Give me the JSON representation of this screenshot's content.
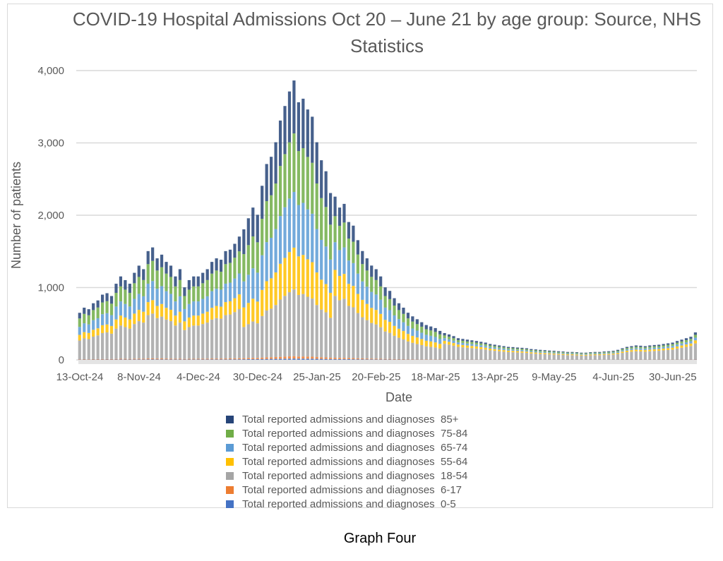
{
  "caption": "Graph Four",
  "chart_data": {
    "type": "bar",
    "stacked": true,
    "title": "COVID-19 Hospital Admissions Oct 20 – June 21 by age group: Source, NHS Statistics",
    "xlabel": "Date",
    "ylabel": "Number of patients",
    "ylim": [
      0,
      4000
    ],
    "yticks": [
      0,
      1000,
      2000,
      3000,
      4000
    ],
    "ytick_labels": [
      "0",
      "1,000",
      "2,000",
      "3,000",
      "4,000"
    ],
    "xtick_labels": [
      "13-Oct-24",
      "8-Nov-24",
      "4-Dec-24",
      "30-Dec-24",
      "25-Jan-25",
      "20-Feb-25",
      "18-Mar-25",
      "13-Apr-25",
      "9-May-25",
      "4-Jun-25",
      "30-Jun-25"
    ],
    "grid": "horizontal",
    "legend": "bottom",
    "x": [
      "13-Oct-24",
      "15-Oct-24",
      "17-Oct-24",
      "19-Oct-24",
      "21-Oct-24",
      "23-Oct-24",
      "25-Oct-24",
      "27-Oct-24",
      "29-Oct-24",
      "31-Oct-24",
      "2-Nov-24",
      "4-Nov-24",
      "6-Nov-24",
      "8-Nov-24",
      "10-Nov-24",
      "12-Nov-24",
      "14-Nov-24",
      "16-Nov-24",
      "18-Nov-24",
      "20-Nov-24",
      "22-Nov-24",
      "24-Nov-24",
      "26-Nov-24",
      "28-Nov-24",
      "30-Nov-24",
      "2-Dec-24",
      "4-Dec-24",
      "6-Dec-24",
      "8-Dec-24",
      "10-Dec-24",
      "12-Dec-24",
      "14-Dec-24",
      "16-Dec-24",
      "18-Dec-24",
      "20-Dec-24",
      "22-Dec-24",
      "24-Dec-24",
      "26-Dec-24",
      "28-Dec-24",
      "30-Dec-24",
      "1-Jan-25",
      "3-Jan-25",
      "5-Jan-25",
      "7-Jan-25",
      "9-Jan-25",
      "11-Jan-25",
      "13-Jan-25",
      "15-Jan-25",
      "17-Jan-25",
      "19-Jan-25",
      "21-Jan-25",
      "23-Jan-25",
      "25-Jan-25",
      "27-Jan-25",
      "29-Jan-25",
      "31-Jan-25",
      "2-Feb-25",
      "4-Feb-25",
      "6-Feb-25",
      "8-Feb-25",
      "10-Feb-25",
      "12-Feb-25",
      "14-Feb-25",
      "16-Feb-25",
      "18-Feb-25",
      "20-Feb-25",
      "22-Feb-25",
      "24-Feb-25",
      "26-Feb-25",
      "28-Feb-25",
      "2-Mar-25",
      "4-Mar-25",
      "6-Mar-25",
      "8-Mar-25",
      "10-Mar-25",
      "12-Mar-25",
      "14-Mar-25",
      "16-Mar-25",
      "18-Mar-25",
      "20-Mar-25",
      "22-Mar-25",
      "24-Mar-25",
      "26-Mar-25",
      "28-Mar-25",
      "30-Mar-25",
      "1-Apr-25",
      "3-Apr-25",
      "5-Apr-25",
      "7-Apr-25",
      "9-Apr-25",
      "11-Apr-25",
      "13-Apr-25",
      "15-Apr-25",
      "17-Apr-25",
      "19-Apr-25",
      "21-Apr-25",
      "23-Apr-25",
      "25-Apr-25",
      "27-Apr-25",
      "29-Apr-25",
      "1-May-25",
      "3-May-25",
      "5-May-25",
      "7-May-25",
      "9-May-25",
      "11-May-25",
      "13-May-25",
      "15-May-25",
      "17-May-25",
      "19-May-25",
      "21-May-25",
      "23-May-25",
      "25-May-25",
      "27-May-25",
      "29-May-25",
      "31-May-25",
      "2-Jun-25",
      "4-Jun-25",
      "6-Jun-25",
      "8-Jun-25",
      "10-Jun-25",
      "12-Jun-25",
      "14-Jun-25",
      "16-Jun-25",
      "18-Jun-25",
      "20-Jun-25",
      "22-Jun-25",
      "24-Jun-25",
      "26-Jun-25",
      "28-Jun-25",
      "30-Jun-25",
      "2-Jul-25",
      "4-Jul-25",
      "6-Jul-25",
      "8-Jul-25",
      "10-Jul-25"
    ],
    "series": [
      {
        "name": "Total reported admissions and diagnoses  0-5",
        "color": "#4472C4",
        "values": [
          3,
          4,
          3,
          4,
          4,
          4,
          5,
          4,
          5,
          6,
          5,
          5,
          6,
          6,
          6,
          7,
          8,
          7,
          7,
          7,
          6,
          6,
          6,
          5,
          5,
          6,
          6,
          6,
          6,
          7,
          7,
          7,
          7,
          8,
          8,
          8,
          9,
          10,
          10,
          10,
          12,
          13,
          14,
          15,
          16,
          17,
          18,
          19,
          18,
          18,
          17,
          17,
          15,
          14,
          13,
          12,
          11,
          10,
          11,
          10,
          9,
          8,
          8,
          7,
          7,
          6,
          6,
          5,
          5,
          4,
          4,
          4,
          3,
          3,
          3,
          3,
          2,
          2,
          2,
          2,
          4,
          4,
          3,
          3,
          3,
          3,
          3,
          3,
          2,
          2,
          2,
          2,
          2,
          2,
          2,
          2,
          2,
          2,
          2,
          1,
          1,
          1,
          1,
          1,
          1,
          1,
          1,
          1,
          1,
          1,
          1,
          1,
          1,
          1,
          1,
          1,
          1,
          1,
          1,
          2,
          2,
          2,
          2,
          2,
          2,
          2,
          2,
          2,
          2,
          2,
          2,
          3,
          3,
          3,
          3,
          4
        ]
      },
      {
        "name": "Total reported admissions and diagnoses  6-17",
        "color": "#ED7D31",
        "values": [
          5,
          6,
          5,
          6,
          7,
          7,
          7,
          7,
          8,
          9,
          9,
          8,
          10,
          10,
          10,
          12,
          12,
          11,
          12,
          11,
          10,
          9,
          10,
          8,
          9,
          9,
          9,
          10,
          10,
          11,
          11,
          11,
          12,
          12,
          13,
          14,
          14,
          16,
          17,
          16,
          19,
          22,
          22,
          24,
          26,
          28,
          30,
          31,
          28,
          29,
          28,
          27,
          24,
          22,
          21,
          18,
          18,
          17,
          17,
          15,
          15,
          13,
          12,
          11,
          10,
          10,
          9,
          8,
          8,
          7,
          6,
          6,
          5,
          5,
          4,
          4,
          4,
          4,
          3,
          3,
          4,
          4,
          3,
          3,
          3,
          3,
          3,
          3,
          2,
          2,
          2,
          2,
          2,
          2,
          2,
          2,
          2,
          2,
          2,
          1,
          1,
          1,
          1,
          1,
          1,
          1,
          1,
          1,
          1,
          1,
          1,
          1,
          1,
          1,
          1,
          1,
          1,
          1,
          1,
          2,
          2,
          2,
          2,
          2,
          2,
          2,
          2,
          2,
          2,
          2,
          2,
          3,
          3,
          3,
          3,
          4
        ]
      },
      {
        "name": "Total reported admissions and diagnoses  18-54",
        "color": "#A5A5A5",
        "values": [
          260,
          288,
          280,
          312,
          328,
          360,
          368,
          352,
          420,
          460,
          440,
          420,
          480,
          520,
          500,
          600,
          620,
          560,
          580,
          540,
          520,
          460,
          500,
          400,
          440,
          460,
          460,
          480,
          500,
          540,
          560,
          552,
          600,
          608,
          640,
          680,
          432,
          468,
          504,
          480,
          576,
          648,
          672,
          720,
          792,
          840,
          888,
          924,
          852,
          864,
          828,
          804,
          720,
          660,
          624,
          552,
          855,
          798,
          817,
          722,
          703,
          627,
          570,
          532,
          494,
          475,
          437,
          380,
          361,
          323,
          296,
          274,
          247,
          228,
          213,
          198,
          182,
          175,
          167,
          152,
          215,
          203,
          191,
          174,
          168,
          162,
          157,
          151,
          145,
          139,
          128,
          122,
          116,
          110,
          104,
          102,
          99,
          96,
          93,
          87,
          84,
          81,
          78,
          75,
          73,
          70,
          67,
          64,
          64,
          61,
          58,
          58,
          61,
          64,
          64,
          67,
          70,
          73,
          81,
          93,
          104,
          110,
          116,
          113,
          110,
          116,
          119,
          122,
          128,
          133,
          139,
          151,
          162,
          174,
          186,
          220
        ]
      },
      {
        "name": "Total reported admissions and diagnoses  55-64",
        "color": "#FFC000",
        "values": [
          78,
          86,
          84,
          94,
          98,
          108,
          110,
          106,
          126,
          138,
          132,
          126,
          144,
          156,
          150,
          180,
          186,
          168,
          174,
          162,
          156,
          138,
          150,
          120,
          132,
          138,
          138,
          144,
          150,
          162,
          168,
          166,
          180,
          182,
          192,
          204,
          270,
          293,
          315,
          300,
          360,
          405,
          420,
          450,
          495,
          525,
          555,
          578,
          533,
          540,
          518,
          503,
          450,
          413,
          390,
          345,
          360,
          336,
          344,
          304,
          296,
          264,
          240,
          224,
          208,
          200,
          184,
          160,
          152,
          136,
          125,
          115,
          104,
          96,
          90,
          83,
          77,
          74,
          70,
          64,
          41,
          39,
          36,
          33,
          32,
          31,
          30,
          29,
          28,
          26,
          24,
          23,
          22,
          21,
          20,
          19,
          19,
          18,
          18,
          17,
          16,
          15,
          15,
          14,
          14,
          13,
          13,
          12,
          12,
          12,
          11,
          11,
          12,
          12,
          12,
          13,
          13,
          14,
          15,
          18,
          20,
          21,
          22,
          21,
          21,
          22,
          23,
          23,
          24,
          25,
          26,
          29,
          31,
          33,
          35,
          42
        ]
      },
      {
        "name": "Total reported admissions and diagnoses  65-74",
        "color": "#5B9BD5",
        "values": [
          110,
          122,
          119,
          133,
          139,
          153,
          156,
          150,
          179,
          196,
          187,
          179,
          204,
          221,
          213,
          255,
          264,
          238,
          247,
          230,
          221,
          196,
          213,
          170,
          187,
          196,
          196,
          204,
          213,
          230,
          238,
          235,
          255,
          258,
          272,
          289,
          360,
          390,
          420,
          400,
          480,
          540,
          560,
          600,
          660,
          700,
          740,
          770,
          710,
          720,
          690,
          670,
          600,
          550,
          520,
          460,
          383,
          357,
          366,
          323,
          315,
          281,
          255,
          238,
          221,
          213,
          196,
          170,
          162,
          145,
          133,
          122,
          111,
          102,
          95,
          88,
          82,
          78,
          75,
          68,
          37,
          35,
          33,
          30,
          29,
          28,
          27,
          26,
          25,
          24,
          22,
          21,
          20,
          19,
          18,
          18,
          17,
          17,
          16,
          15,
          15,
          14,
          14,
          13,
          13,
          12,
          12,
          11,
          11,
          11,
          10,
          10,
          11,
          11,
          11,
          12,
          12,
          13,
          14,
          16,
          18,
          19,
          20,
          20,
          19,
          20,
          21,
          21,
          22,
          23,
          24,
          26,
          28,
          30,
          32,
          38
        ]
      },
      {
        "name": "Total reported admissions and diagnoses  75-84",
        "color": "#70AD47",
        "values": [
          117,
          130,
          126,
          140,
          148,
          162,
          166,
          158,
          189,
          207,
          198,
          189,
          216,
          234,
          225,
          270,
          279,
          252,
          261,
          243,
          234,
          207,
          225,
          180,
          198,
          207,
          207,
          216,
          225,
          243,
          252,
          248,
          270,
          274,
          288,
          306,
          378,
          410,
          441,
          420,
          504,
          567,
          588,
          630,
          693,
          735,
          777,
          809,
          746,
          756,
          725,
          704,
          630,
          578,
          546,
          483,
          360,
          336,
          344,
          304,
          296,
          264,
          240,
          224,
          208,
          200,
          184,
          160,
          152,
          136,
          125,
          115,
          104,
          96,
          90,
          83,
          77,
          74,
          70,
          64,
          37,
          35,
          33,
          30,
          29,
          28,
          27,
          26,
          25,
          24,
          22,
          21,
          20,
          19,
          18,
          18,
          17,
          17,
          16,
          15,
          15,
          14,
          14,
          13,
          13,
          12,
          12,
          11,
          11,
          11,
          10,
          10,
          11,
          11,
          11,
          12,
          12,
          13,
          14,
          16,
          18,
          19,
          20,
          20,
          19,
          20,
          21,
          21,
          22,
          23,
          24,
          26,
          28,
          30,
          32,
          38
        ]
      },
      {
        "name": "Total reported admissions and diagnoses  85+",
        "color": "#264478",
        "values": [
          78,
          86,
          84,
          94,
          98,
          108,
          110,
          106,
          126,
          138,
          132,
          126,
          144,
          156,
          150,
          180,
          186,
          168,
          174,
          162,
          156,
          138,
          150,
          120,
          132,
          138,
          138,
          144,
          150,
          162,
          168,
          166,
          180,
          182,
          192,
          204,
          342,
          371,
          399,
          380,
          456,
          513,
          532,
          570,
          627,
          665,
          703,
          732,
          675,
          684,
          656,
          637,
          570,
          523,
          494,
          437,
          270,
          252,
          258,
          228,
          222,
          198,
          180,
          168,
          156,
          150,
          138,
          120,
          114,
          102,
          94,
          86,
          78,
          72,
          67,
          62,
          58,
          55,
          53,
          48,
          33,
          32,
          30,
          27,
          26,
          25,
          24,
          23,
          23,
          22,
          20,
          19,
          18,
          17,
          16,
          16,
          15,
          15,
          14,
          14,
          13,
          13,
          12,
          12,
          11,
          11,
          10,
          10,
          10,
          9,
          9,
          9,
          9,
          10,
          10,
          10,
          11,
          11,
          13,
          14,
          16,
          17,
          18,
          18,
          17,
          18,
          18,
          19,
          20,
          21,
          22,
          23,
          25,
          27,
          29,
          34
        ]
      }
    ]
  }
}
